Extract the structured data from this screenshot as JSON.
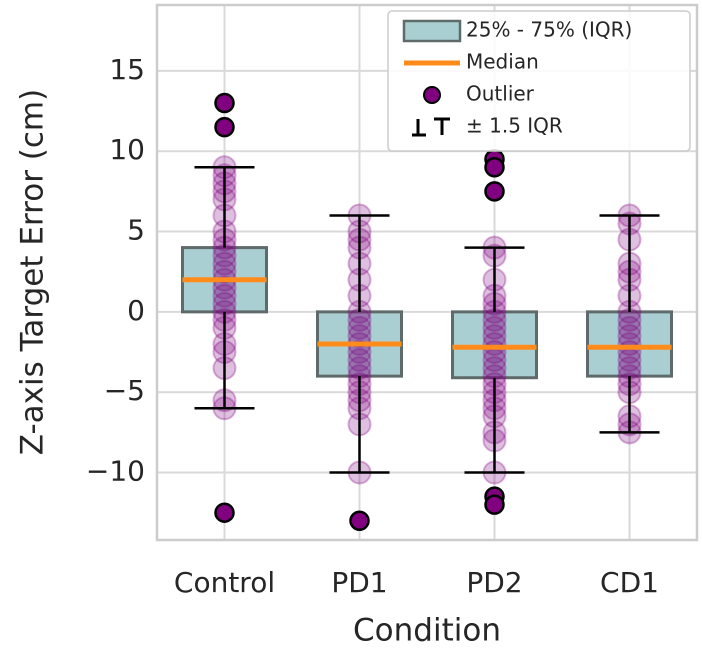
{
  "chart_data": {
    "type": "box",
    "xlabel": "Condition",
    "ylabel": "Z-axis Target Error (cm)",
    "categories": [
      "Control",
      "PD1",
      "PD2",
      "CD1"
    ],
    "ylim": [
      -14.2,
      19.1
    ],
    "yticks": [
      {
        "value": -10,
        "label": "−10"
      },
      {
        "value": -5,
        "label": "−5"
      },
      0,
      5,
      10,
      15
    ],
    "grid": true,
    "box_color": "#aacfd2",
    "edge_color": "#5f6b6b",
    "median_color": "#ff8c1a",
    "point_color": "#800080",
    "legend_loc": "upper right",
    "legend": [
      "25% - 75% (IQR)",
      "Median",
      "Outlier",
      "± 1.5 IQR"
    ],
    "stats": [
      {
        "whisker_low": -6,
        "q1": 0,
        "median": 2,
        "q3": 4,
        "whisker_high": 9,
        "outliers": [
          13,
          11.5,
          -12.5
        ]
      },
      {
        "whisker_low": -10,
        "q1": -4,
        "median": -2,
        "q3": 0,
        "whisker_high": 6,
        "outliers": [
          -13
        ]
      },
      {
        "whisker_low": -10,
        "q1": -4.1,
        "median": -2.2,
        "q3": 0,
        "whisker_high": 4,
        "outliers": [
          9.5,
          9,
          7.5,
          -11.5,
          -12
        ]
      },
      {
        "whisker_low": -7.5,
        "q1": -4,
        "median": -2.2,
        "q3": 0,
        "whisker_high": 6,
        "outliers": []
      }
    ],
    "points": [
      [
        9,
        8.5,
        8,
        7.5,
        7,
        6,
        5,
        4.5,
        4,
        3.5,
        3,
        2.5,
        2,
        1.5,
        1,
        0.5,
        0,
        -0.5,
        -1,
        -2,
        -2.5,
        -3.5,
        -5.5,
        -6
      ],
      [
        6,
        5,
        4.5,
        4,
        3,
        2,
        1,
        0,
        -0.5,
        -1,
        -1.5,
        -2,
        -2.5,
        -3,
        -3.5,
        -4,
        -4.5,
        -5,
        -5.5,
        -6,
        -7,
        -10
      ],
      [
        4,
        3.5,
        2,
        1,
        0.5,
        0,
        -0.5,
        -1,
        -1.5,
        -2,
        -2.5,
        -3,
        -3.5,
        -4,
        -4.5,
        -5,
        -5.5,
        -6,
        -6.5,
        -7.5,
        -8,
        -10
      ],
      [
        6,
        5.5,
        4.5,
        3,
        2.5,
        2,
        1,
        0,
        -0.5,
        -1,
        -1.5,
        -2,
        -2.5,
        -3,
        -3.5,
        -4,
        -4.5,
        -5,
        -6.5,
        -7,
        -7.5
      ]
    ]
  }
}
